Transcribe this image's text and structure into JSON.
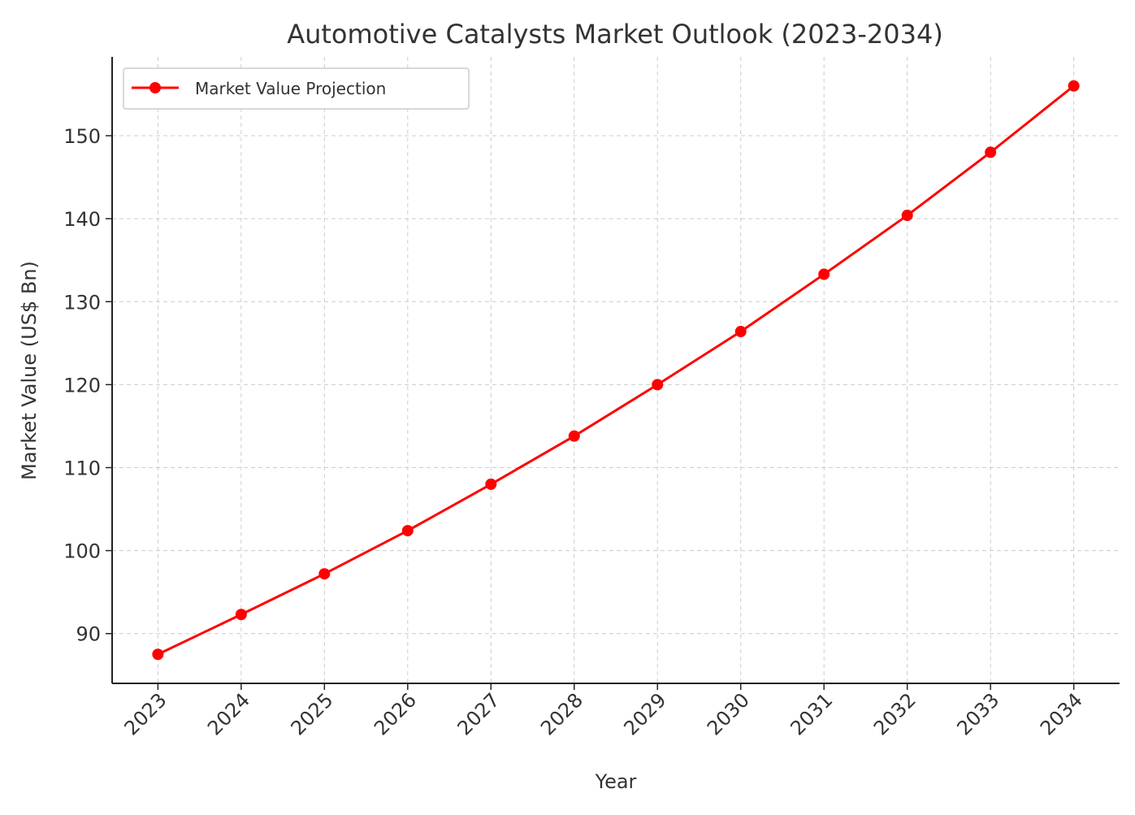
{
  "chart_data": {
    "type": "line",
    "title": "Automotive Catalysts Market Outlook (2023-2034)",
    "xlabel": "Year",
    "ylabel": "Market Value (US$ Bn)",
    "x": [
      2023,
      2024,
      2025,
      2026,
      2027,
      2028,
      2029,
      2030,
      2031,
      2032,
      2033,
      2034
    ],
    "x_tick_labels": [
      "2023",
      "2024",
      "2025",
      "2026",
      "2027",
      "2028",
      "2029",
      "2030",
      "2031",
      "2032",
      "2033",
      "2034"
    ],
    "y_ticks": [
      90,
      100,
      110,
      120,
      130,
      140,
      150
    ],
    "xlim": [
      2022.45,
      2034.55
    ],
    "ylim": [
      84.0,
      159.5
    ],
    "grid": true,
    "legend_position": "top-left",
    "series": [
      {
        "name": "Market Value Projection",
        "color": "#ff0000",
        "marker": "circle",
        "values": [
          87.5,
          92.3,
          97.2,
          102.4,
          108.0,
          113.8,
          120.0,
          126.4,
          133.3,
          140.4,
          148.0,
          156.0
        ]
      }
    ]
  }
}
